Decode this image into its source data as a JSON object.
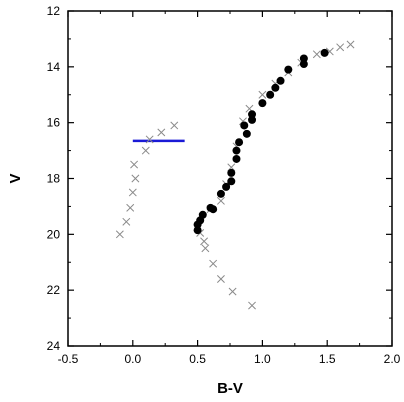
{
  "chart_data": {
    "type": "scatter",
    "xlabel": "B-V",
    "ylabel": "V",
    "xlim": [
      -0.5,
      2.0
    ],
    "ylim": [
      24,
      12
    ],
    "y_inverted": true,
    "x_ticks": [
      -0.5,
      0.0,
      0.5,
      1.0,
      1.5,
      2.0
    ],
    "x_tick_labels": [
      "-0.5",
      "0.0",
      "0.5",
      "1.0",
      "1.5",
      "2.0"
    ],
    "y_ticks": [
      12,
      14,
      16,
      18,
      20,
      22,
      24
    ],
    "y_tick_labels": [
      "12",
      "14",
      "16",
      "18",
      "20",
      "22",
      "24"
    ],
    "grid": false,
    "legend": "none",
    "series": [
      {
        "marker": "x",
        "color": "#8a8a8a",
        "points": [
          [
            -0.1,
            20.0
          ],
          [
            -0.05,
            19.55
          ],
          [
            -0.02,
            19.05
          ],
          [
            0.0,
            18.5
          ],
          [
            0.02,
            18.0
          ],
          [
            0.01,
            17.5
          ],
          [
            0.1,
            17.0
          ],
          [
            0.13,
            16.6
          ],
          [
            0.22,
            16.35
          ],
          [
            0.32,
            16.1
          ],
          [
            0.52,
            19.95
          ],
          [
            0.55,
            20.25
          ],
          [
            0.56,
            20.5
          ],
          [
            0.62,
            21.05
          ],
          [
            0.68,
            21.6
          ],
          [
            0.77,
            22.05
          ],
          [
            0.92,
            22.55
          ],
          [
            0.6,
            19.1
          ],
          [
            0.68,
            18.8
          ],
          [
            0.72,
            18.2
          ],
          [
            0.76,
            17.6
          ],
          [
            0.8,
            16.85
          ],
          [
            0.85,
            15.95
          ],
          [
            0.9,
            15.5
          ],
          [
            1.0,
            15.0
          ],
          [
            1.1,
            14.6
          ],
          [
            1.2,
            14.2
          ],
          [
            1.3,
            13.85
          ],
          [
            1.42,
            13.55
          ],
          [
            1.52,
            13.45
          ],
          [
            1.6,
            13.3
          ],
          [
            1.68,
            13.2
          ]
        ]
      },
      {
        "marker": "filled-circle",
        "color": "#000000",
        "points": [
          [
            0.5,
            19.85
          ],
          [
            0.5,
            19.65
          ],
          [
            0.52,
            19.5
          ],
          [
            0.54,
            19.3
          ],
          [
            0.62,
            19.1
          ],
          [
            0.6,
            19.05
          ],
          [
            0.68,
            18.55
          ],
          [
            0.72,
            18.3
          ],
          [
            0.76,
            18.1
          ],
          [
            0.76,
            17.8
          ],
          [
            0.8,
            17.3
          ],
          [
            0.8,
            17.0
          ],
          [
            0.82,
            16.7
          ],
          [
            0.88,
            16.4
          ],
          [
            0.86,
            16.1
          ],
          [
            0.92,
            15.9
          ],
          [
            0.92,
            15.7
          ],
          [
            1.0,
            15.3
          ],
          [
            1.06,
            15.0
          ],
          [
            1.1,
            14.75
          ],
          [
            1.14,
            14.5
          ],
          [
            1.2,
            14.1
          ],
          [
            1.32,
            13.9
          ],
          [
            1.32,
            13.7
          ],
          [
            1.48,
            13.5
          ]
        ]
      }
    ],
    "annotations": [
      {
        "type": "hline-segment",
        "color": "#1a1ad6",
        "y": 16.65,
        "x_range": [
          0.0,
          0.4
        ]
      }
    ]
  }
}
